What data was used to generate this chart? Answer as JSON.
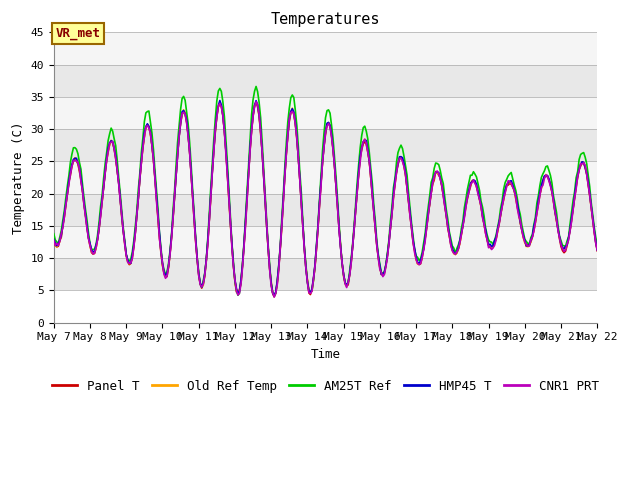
{
  "title": "Temperatures",
  "xlabel": "Time",
  "ylabel": "Temperature (C)",
  "ylim": [
    0,
    45
  ],
  "annotation": "VR_met",
  "x_start_day": 7,
  "x_end_day": 22,
  "x_ticks": [
    7,
    8,
    9,
    10,
    11,
    12,
    13,
    14,
    15,
    16,
    17,
    18,
    19,
    20,
    21,
    22
  ],
  "x_tick_labels": [
    "May 7",
    "May 8",
    "May 9",
    "May 10",
    "May 11",
    "May 12",
    "May 13",
    "May 14",
    "May 15",
    "May 16",
    "May 17",
    "May 18",
    "May 19",
    "May 20",
    "May 21",
    "May 22"
  ],
  "series_order": [
    "Panel T",
    "Old Ref Temp",
    "AM25T Ref",
    "HMP45 T",
    "CNR1 PRT"
  ],
  "series": {
    "Panel T": {
      "color": "#cc0000",
      "lw": 1.2
    },
    "Old Ref Temp": {
      "color": "#ffa500",
      "lw": 1.2
    },
    "AM25T Ref": {
      "color": "#00cc00",
      "lw": 1.2
    },
    "HMP45 T": {
      "color": "#0000cc",
      "lw": 1.2
    },
    "CNR1 PRT": {
      "color": "#bb00bb",
      "lw": 1.2
    }
  },
  "bg_color": "#e8e8e8",
  "band_light": "#f5f5f5",
  "band_dark": "#e0e0e0",
  "ytick_bands": [
    {
      "ymin": 0,
      "ymax": 5,
      "color": "#ffffff"
    },
    {
      "ymin": 5,
      "ymax": 10,
      "color": "#e8e8e8"
    },
    {
      "ymin": 10,
      "ymax": 15,
      "color": "#f5f5f5"
    },
    {
      "ymin": 15,
      "ymax": 20,
      "color": "#e8e8e8"
    },
    {
      "ymin": 20,
      "ymax": 25,
      "color": "#f5f5f5"
    },
    {
      "ymin": 25,
      "ymax": 30,
      "color": "#e8e8e8"
    },
    {
      "ymin": 30,
      "ymax": 35,
      "color": "#f5f5f5"
    },
    {
      "ymin": 35,
      "ymax": 40,
      "color": "#e8e8e8"
    },
    {
      "ymin": 40,
      "ymax": 45,
      "color": "#f5f5f5"
    }
  ],
  "title_fontsize": 11,
  "tick_fontsize": 8,
  "legend_fontsize": 9,
  "axis_label_fontsize": 9
}
